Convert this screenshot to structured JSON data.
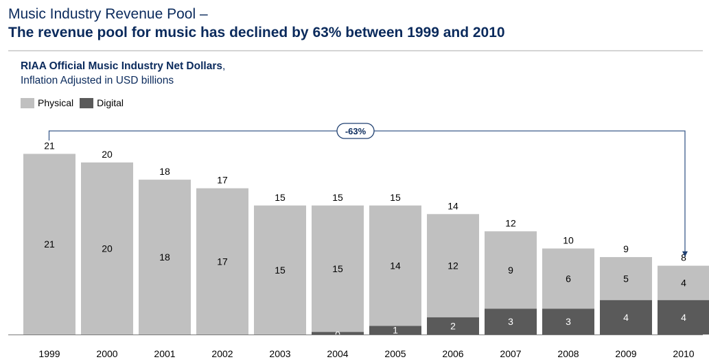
{
  "header": {
    "title_line1": "Music Industry Revenue Pool –",
    "title_line2": "The revenue pool for music has declined by 63% between 1999 and 2010"
  },
  "chart_heading": {
    "bold": "RIAA Official Music Industry Net Dollars",
    "comma": ",",
    "line2": "Inflation Adjusted in USD billions"
  },
  "colors": {
    "physical": "#c0c0c0",
    "digital": "#5a5a5a",
    "arrow": "#3a5a8a"
  },
  "chart_data": {
    "type": "bar",
    "stacked": true,
    "categories": [
      "1999",
      "2000",
      "2001",
      "2002",
      "2003",
      "2004",
      "2005",
      "2006",
      "2007",
      "2008",
      "2009",
      "2010"
    ],
    "series": [
      {
        "name": "Physical",
        "values": [
          21,
          20,
          18,
          17,
          15,
          15,
          14,
          12,
          9,
          6,
          5,
          4
        ]
      },
      {
        "name": "Digital",
        "values": [
          0,
          0,
          0,
          0,
          0,
          0,
          1,
          2,
          3,
          3,
          4,
          4
        ]
      }
    ],
    "totals": [
      21,
      20,
      18,
      17,
      15,
      15,
      15,
      14,
      12,
      10,
      9,
      8
    ],
    "digital_label_from_index": 4,
    "digital_label_year": "2004",
    "digital_label_2004": "0",
    "annotation": {
      "text": "-63%",
      "from": "1999",
      "to": "2010"
    },
    "legend_position": "top-left",
    "grid": false
  }
}
